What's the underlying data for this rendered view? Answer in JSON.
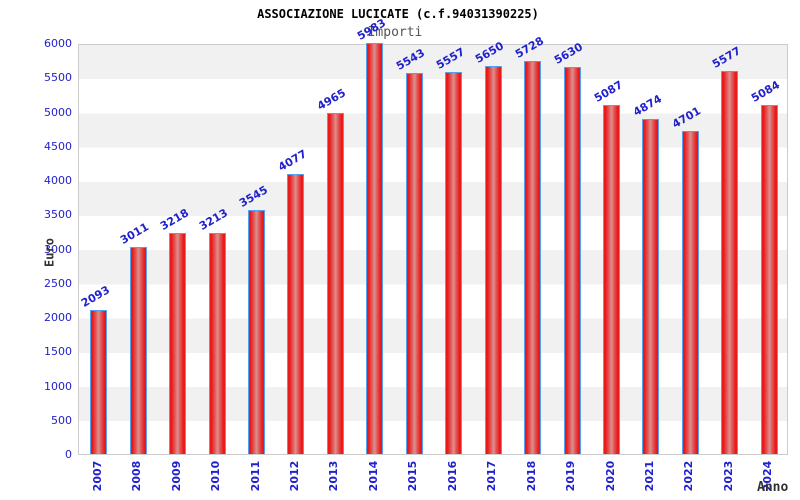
{
  "header": {
    "title": "ASSOCIAZIONE LUCICATE (c.f.94031390225)",
    "subtitle": "Importi"
  },
  "chart_data": {
    "type": "bar",
    "title": "ASSOCIAZIONE LUCICATE (c.f.94031390225)",
    "subtitle": "Importi",
    "xlabel": "Anno",
    "ylabel": "Euro",
    "ylim": [
      0,
      6000
    ],
    "y_tick_step": 500,
    "y_ticks": [
      0,
      500,
      1000,
      1500,
      2000,
      2500,
      3000,
      3500,
      4000,
      4500,
      5000,
      5500,
      6000
    ],
    "grid": "alternating-horizontal-bands",
    "legend": "none",
    "categories": [
      "2007",
      "2008",
      "2009",
      "2010",
      "2011",
      "2012",
      "2013",
      "2014",
      "2015",
      "2016",
      "2017",
      "2018",
      "2019",
      "2020",
      "2021",
      "2022",
      "2023",
      "2024"
    ],
    "values": [
      2093,
      3011,
      3218,
      3213,
      3545,
      4077,
      4965,
      5983,
      5543,
      5557,
      5650,
      5728,
      5630,
      5087,
      4874,
      4701,
      5577,
      5084
    ],
    "colors": {
      "label_blue": "#2222cc",
      "bar_red": "#e81a1a",
      "bar_mid": "#e25656",
      "bar_highlight": "#dc9090",
      "bar_border": "#53a0f0",
      "band_gray": "#f1f1f1",
      "plot_border": "#cccccc",
      "axis_text": "#333333"
    }
  }
}
